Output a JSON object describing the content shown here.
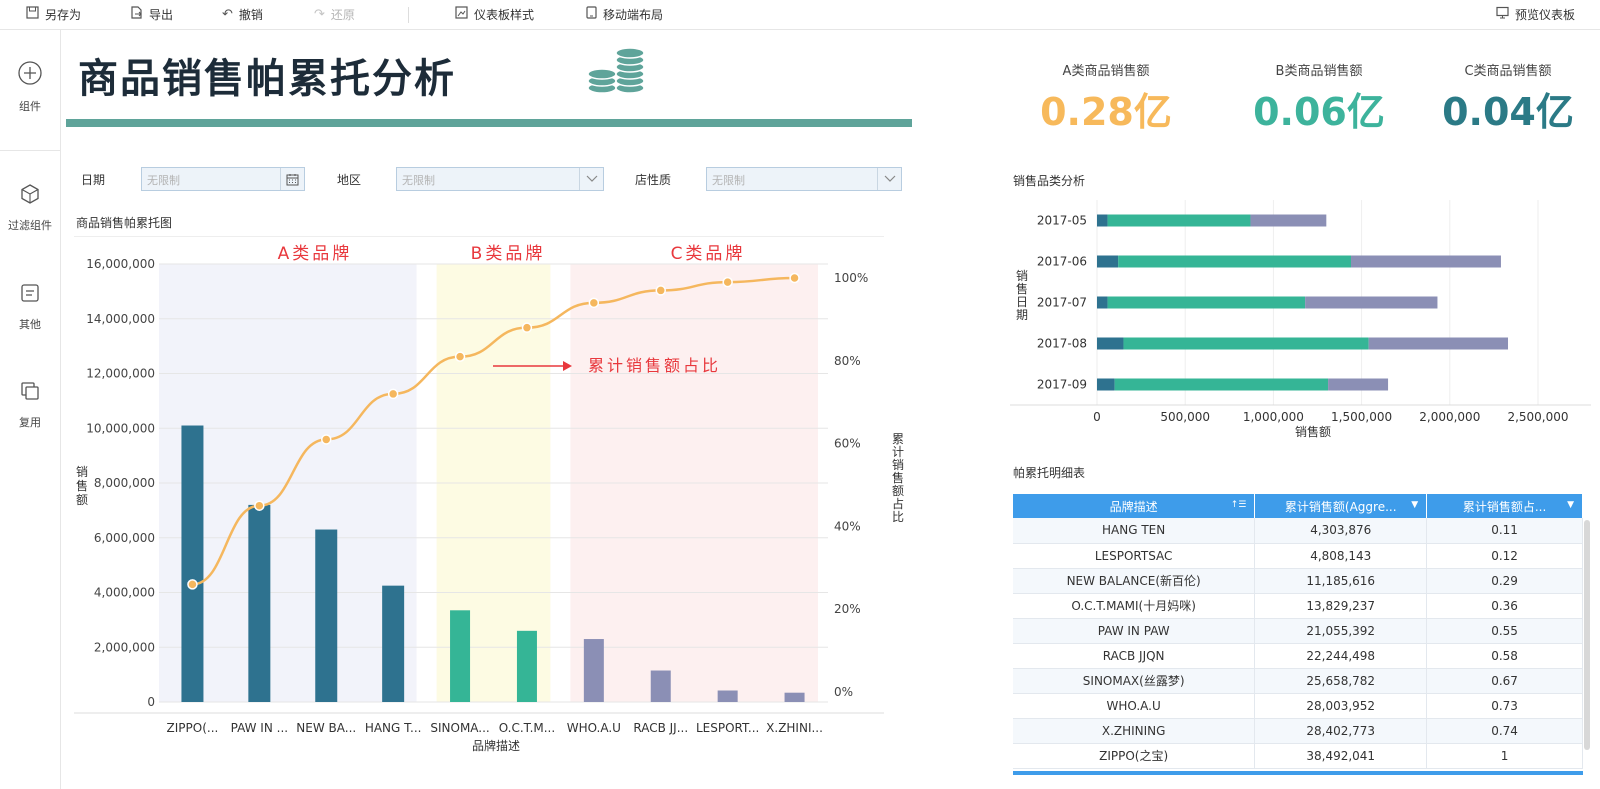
{
  "toolbar": {
    "save_as": "另存为",
    "export": "导出",
    "undo": "撤销",
    "redo": "还原",
    "dashboard_style": "仪表板样式",
    "mobile_layout": "移动端布局",
    "preview": "预览仪表板"
  },
  "rail": {
    "component": "组件",
    "filter_component": "过滤组件",
    "other": "其他",
    "reuse": "复用"
  },
  "title": "商品销售帕累托分析",
  "kpis": [
    {
      "label": "A类商品销售额",
      "value": "0.28亿",
      "color": "#f7b95b"
    },
    {
      "label": "B类商品销售额",
      "value": "0.06亿",
      "color": "#3db39c"
    },
    {
      "label": "C类商品销售额",
      "value": "0.04亿",
      "color": "#2b7a86"
    }
  ],
  "filters": {
    "date_label": "日期",
    "date_placeholder": "无限制",
    "region_label": "地区",
    "region_placeholder": "无限制",
    "store_label": "店性质",
    "store_placeholder": "无限制"
  },
  "pareto": {
    "section_title": "商品销售帕累托图",
    "zone_a": "A类品牌",
    "zone_b": "B类品牌",
    "zone_c": "C类品牌",
    "annotation": "累计销售额占比",
    "chart_data": {
      "type": "bar",
      "categories": [
        "ZIPPO(...",
        "PAW IN ...",
        "NEW BA...",
        "HANG T...",
        "SINOMA...",
        "O.C.T.M...",
        "WHO.A.U",
        "RACB JJ...",
        "LESPORT...",
        "X.ZHINI..."
      ],
      "series": [
        {
          "values": [
            10100000,
            7200000,
            6300000,
            4250000,
            3350000,
            2600000,
            2300000,
            1150000,
            420000,
            340000
          ],
          "colors": [
            "#2e728f",
            "#2e728f",
            "#2e728f",
            "#2e728f",
            "#35b596",
            "#35b596",
            "#8b8fb5",
            "#8b8fb5",
            "#8b8fb5",
            "#8b8fb5"
          ]
        },
        {
          "type": "line",
          "axis": "right",
          "values": [
            0.26,
            0.45,
            0.61,
            0.72,
            0.81,
            0.88,
            0.94,
            0.97,
            0.99,
            1.0
          ],
          "color": "#f5b75e"
        }
      ],
      "xlabel": "品牌描述",
      "ylabel": "销售额",
      "y2label": "累计销售额占比",
      "ylim": [
        0,
        16000000
      ],
      "y2lim": [
        0,
        1
      ],
      "yticks": [
        "0",
        "2,000,000",
        "4,000,000",
        "6,000,000",
        "8,000,000",
        "10,000,000",
        "12,000,000",
        "14,000,000",
        "16,000,000"
      ],
      "y2ticks": [
        "0%",
        "20%",
        "40%",
        "60%",
        "80%",
        "100%"
      ],
      "grid": true
    }
  },
  "category_chart": {
    "section_title": "销售品类分析",
    "chart_data": {
      "type": "bar",
      "orientation": "horizontal",
      "stacked": true,
      "categories": [
        "2017-05",
        "2017-06",
        "2017-07",
        "2017-08",
        "2017-09"
      ],
      "series": [
        {
          "values": [
            60000,
            120000,
            60000,
            150000,
            100000
          ],
          "color": "#2e728f"
        },
        {
          "values": [
            810000,
            1320000,
            1120000,
            1390000,
            1210000
          ],
          "color": "#35b596"
        },
        {
          "values": [
            430000,
            850000,
            750000,
            790000,
            340000
          ],
          "color": "#8b8fb5"
        }
      ],
      "xlabel": "销售额",
      "ylabel": "销售日期",
      "xlim": [
        0,
        2500000
      ],
      "xticks": [
        "0",
        "500,000",
        "1,000,000",
        "1,500,000",
        "2,000,000",
        "2,500,000"
      ],
      "grid": true
    }
  },
  "detail_table": {
    "section_title": "帕累托明细表",
    "columns": [
      "品牌描述",
      "累计销售额(Aggre...",
      "累计销售额占..."
    ],
    "rows": [
      [
        "HANG TEN",
        "4,303,876",
        "0.11"
      ],
      [
        "LESPORTSAC",
        "4,808,143",
        "0.12"
      ],
      [
        "NEW BALANCE(新百伦)",
        "11,185,616",
        "0.29"
      ],
      [
        "O.C.T.MAMI(十月妈咪)",
        "13,829,237",
        "0.36"
      ],
      [
        "PAW IN PAW",
        "21,055,392",
        "0.55"
      ],
      [
        "RACB JJQN",
        "22,244,498",
        "0.58"
      ],
      [
        "SINOMAX(丝露梦)",
        "25,658,782",
        "0.67"
      ],
      [
        "WHO.A.U",
        "28,003,952",
        "0.73"
      ],
      [
        "X.ZHINING",
        "28,402,773",
        "0.74"
      ],
      [
        "ZIPPO(之宝)",
        "38,492,041",
        "1"
      ]
    ]
  }
}
